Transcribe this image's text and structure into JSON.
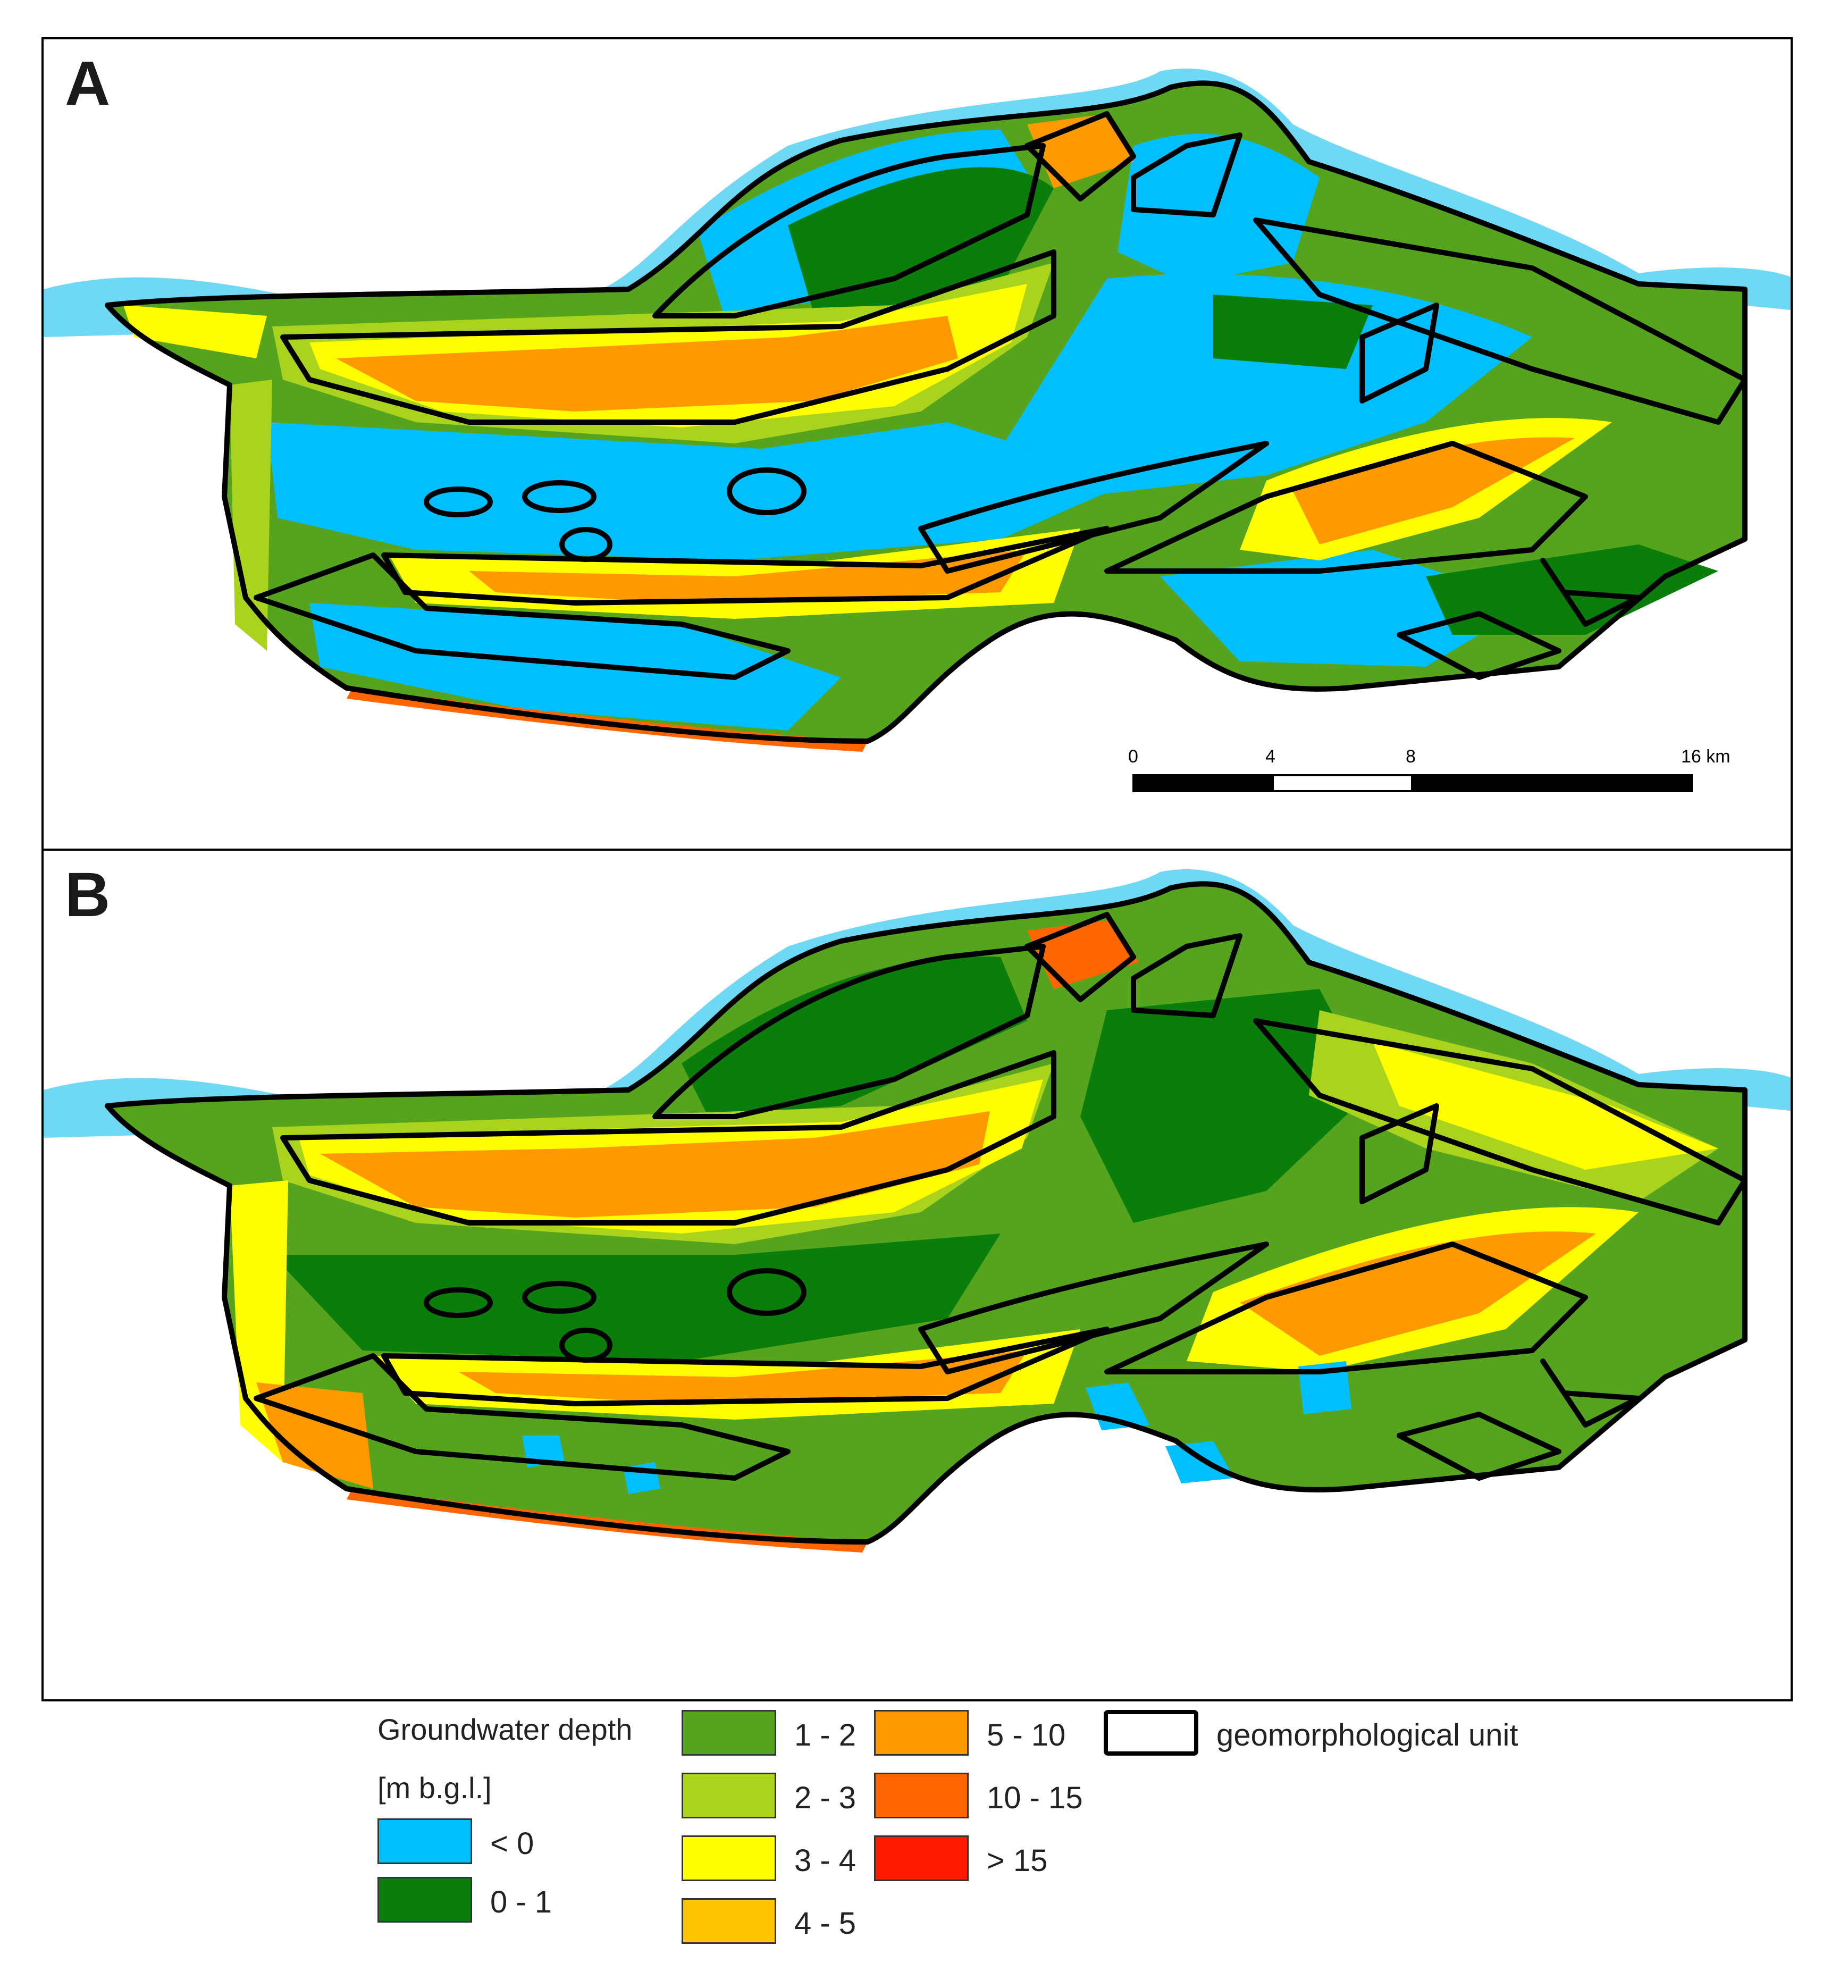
{
  "panels": {
    "a": {
      "label": "A"
    },
    "b": {
      "label": "B"
    }
  },
  "scalebar": {
    "ticks": [
      "0",
      "4",
      "8",
      "16 km"
    ]
  },
  "legend": {
    "title": "Groundwater depth",
    "unit": "[m b.g.l.]",
    "classes": [
      {
        "label": "< 0",
        "color": "#00bfff"
      },
      {
        "label": "0 - 1",
        "color": "#0a7d0a"
      },
      {
        "label": "1 - 2",
        "color": "#56a41e"
      },
      {
        "label": "2 - 3",
        "color": "#a9d31d"
      },
      {
        "label": "3 - 4",
        "color": "#ffff00"
      },
      {
        "label": "4 - 5",
        "color": "#ffc400"
      },
      {
        "label": "5 - 10",
        "color": "#ff9900"
      },
      {
        "label": "10 - 15",
        "color": "#ff6600"
      },
      {
        "label": "> 15",
        "color": "#ff1a00"
      }
    ],
    "unit_outline_label": "geomorphological unit"
  },
  "river_color": "#6fd8f5"
}
